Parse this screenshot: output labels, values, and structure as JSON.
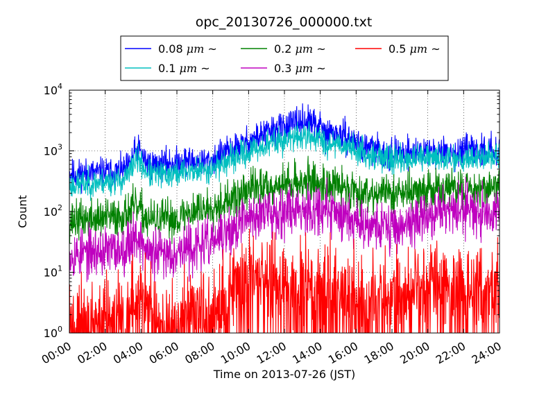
{
  "chart_data": {
    "type": "line",
    "title": "opc_20130726_000000.txt",
    "xlabel": "Time on 2013-07-26 (JST)",
    "ylabel": "Count",
    "x_unit": "hours",
    "xlim": [
      0,
      24
    ],
    "ylim": [
      1,
      10000
    ],
    "yscale": "log",
    "grid": true,
    "legend_position": "top-center",
    "x_ticks": [
      0,
      2,
      4,
      6,
      8,
      10,
      12,
      14,
      16,
      18,
      20,
      22,
      24
    ],
    "x_tick_labels": [
      "00:00",
      "02:00",
      "04:00",
      "06:00",
      "08:00",
      "10:00",
      "12:00",
      "14:00",
      "16:00",
      "18:00",
      "20:00",
      "22:00",
      "24:00"
    ],
    "y_ticks": [
      1,
      10,
      100,
      1000,
      10000
    ],
    "y_tick_labels": [
      {
        "base": "10",
        "exp": "0"
      },
      {
        "base": "10",
        "exp": "1"
      },
      {
        "base": "10",
        "exp": "2"
      },
      {
        "base": "10",
        "exp": "3"
      },
      {
        "base": "10",
        "exp": "4"
      }
    ],
    "series": [
      {
        "name": "0.08 μm ~",
        "legend_size": "0.08",
        "legend_unit": "μm",
        "legend_suffix": "~",
        "color": "#0000ff",
        "x": [
          0,
          0.5,
          1,
          1.5,
          2,
          2.5,
          3,
          3.3,
          3.6,
          3.9,
          4.2,
          4.5,
          5,
          5.5,
          6,
          6.5,
          7,
          7.5,
          8,
          8.5,
          9,
          9.5,
          10,
          10.5,
          11,
          11.5,
          12,
          12.5,
          13,
          13.3,
          13.6,
          14,
          14.3,
          14.6,
          15,
          15.5,
          16,
          16.5,
          17,
          17.5,
          18,
          18.5,
          19,
          19.5,
          20,
          20.5,
          21,
          21.5,
          22,
          22.5,
          23,
          23.5,
          24
        ],
        "values": [
          420,
          420,
          430,
          430,
          440,
          450,
          460,
          550,
          900,
          1050,
          700,
          600,
          600,
          620,
          640,
          700,
          660,
          650,
          700,
          880,
          1000,
          1250,
          1400,
          1700,
          2000,
          2300,
          2500,
          2700,
          3000,
          3100,
          2700,
          2600,
          1800,
          2000,
          1900,
          1600,
          1400,
          1150,
          1050,
          950,
          900,
          920,
          950,
          950,
          960,
          960,
          950,
          950,
          960,
          980,
          1000,
          1020,
          1050
        ],
        "noise": 0.12,
        "seed": 11
      },
      {
        "name": "0.1 μm ~",
        "legend_size": "0.1",
        "legend_unit": "μm",
        "legend_suffix": "~",
        "color": "#00bfbf",
        "x": [
          0,
          0.5,
          1,
          1.5,
          2,
          2.5,
          3,
          3.3,
          3.6,
          3.9,
          4.2,
          4.5,
          5,
          5.5,
          6,
          6.5,
          7,
          7.5,
          8,
          8.5,
          9,
          9.5,
          10,
          10.5,
          11,
          11.5,
          12,
          12.5,
          13,
          13.3,
          13.6,
          14,
          14.3,
          14.6,
          15,
          15.5,
          16,
          16.5,
          17,
          17.5,
          18,
          18.5,
          19,
          19.5,
          20,
          20.5,
          21,
          21.5,
          22,
          22.5,
          23,
          23.5,
          24
        ],
        "values": [
          270,
          280,
          290,
          300,
          310,
          320,
          330,
          400,
          650,
          700,
          500,
          410,
          400,
          410,
          420,
          470,
          460,
          480,
          520,
          620,
          700,
          850,
          950,
          1100,
          1250,
          1400,
          1500,
          1600,
          1750,
          1800,
          1650,
          1600,
          1250,
          1400,
          1350,
          1200,
          1050,
          900,
          820,
          780,
          720,
          720,
          730,
          740,
          750,
          750,
          760,
          760,
          770,
          780,
          790,
          800,
          820
        ],
        "noise": 0.11,
        "seed": 23
      },
      {
        "name": "0.2 μm ~",
        "legend_size": "0.2",
        "legend_unit": "μm",
        "legend_suffix": "~",
        "color": "#008000",
        "x": [
          0,
          0.5,
          1,
          1.5,
          2,
          2.5,
          3,
          3.3,
          3.6,
          3.9,
          4.2,
          4.5,
          5,
          5.5,
          6,
          6.5,
          7,
          7.5,
          8,
          8.5,
          9,
          9.5,
          10,
          10.5,
          11,
          11.5,
          12,
          12.5,
          13,
          13.3,
          13.6,
          14,
          14.3,
          14.6,
          15,
          15.5,
          16,
          16.5,
          17,
          17.5,
          18,
          18.5,
          19,
          19.5,
          20,
          20.5,
          21,
          21.5,
          22,
          22.5,
          23,
          23.5,
          24
        ],
        "values": [
          70,
          72,
          75,
          75,
          78,
          80,
          85,
          100,
          115,
          110,
          80,
          72,
          72,
          74,
          78,
          90,
          105,
          110,
          125,
          140,
          150,
          170,
          240,
          250,
          260,
          270,
          280,
          295,
          310,
          320,
          300,
          290,
          280,
          270,
          260,
          240,
          220,
          210,
          205,
          200,
          200,
          205,
          210,
          215,
          220,
          225,
          230,
          235,
          240,
          245,
          250,
          255,
          260
        ],
        "noise": 0.16,
        "seed": 37
      },
      {
        "name": "0.3 μm ~",
        "legend_size": "0.3",
        "legend_unit": "μm",
        "legend_suffix": "~",
        "color": "#bf00bf",
        "x": [
          0,
          0.5,
          1,
          1.5,
          2,
          2.5,
          3,
          3.3,
          3.6,
          3.9,
          4.2,
          4.5,
          5,
          5.5,
          6,
          6.5,
          7,
          7.5,
          8,
          8.5,
          9,
          9.5,
          10,
          10.5,
          11,
          11.5,
          12,
          12.5,
          13,
          13.3,
          13.6,
          14,
          14.3,
          14.6,
          15,
          15.5,
          16,
          16.5,
          17,
          17.5,
          18,
          18.5,
          19,
          19.5,
          20,
          20.5,
          21,
          21.5,
          22,
          22.5,
          23,
          23.5,
          24
        ],
        "values": [
          20,
          20,
          21,
          22,
          22,
          23,
          24,
          30,
          40,
          38,
          25,
          20,
          20,
          21,
          22,
          24,
          26,
          28,
          32,
          38,
          45,
          60,
          80,
          90,
          95,
          100,
          105,
          110,
          115,
          115,
          112,
          110,
          100,
          98,
          95,
          85,
          75,
          65,
          60,
          58,
          55,
          58,
          65,
          75,
          85,
          95,
          100,
          105,
          110,
          110,
          108,
          106,
          105
        ],
        "noise": 0.2,
        "seed": 53
      },
      {
        "name": "0.5 μm ~",
        "legend_size": "0.5",
        "legend_unit": "μm",
        "legend_suffix": "~",
        "color": "#ff0000",
        "x": [
          0,
          1,
          2,
          3,
          3.5,
          4,
          5,
          6,
          7,
          8,
          8.5,
          9,
          9.5,
          10,
          11,
          12,
          13,
          14,
          15,
          16,
          17,
          18,
          19,
          20,
          21,
          22,
          23,
          24
        ],
        "values": [
          1.6,
          1.6,
          1.6,
          2.0,
          3.5,
          3.0,
          1.8,
          1.7,
          1.8,
          2.3,
          3.5,
          5.5,
          7.5,
          9.0,
          7.5,
          6.5,
          6.0,
          5.5,
          5.0,
          4.5,
          4.2,
          4.0,
          5.0,
          6.0,
          6.5,
          6.5,
          6.0,
          6.0
        ],
        "noise": 0.35,
        "seed": 71
      }
    ]
  }
}
